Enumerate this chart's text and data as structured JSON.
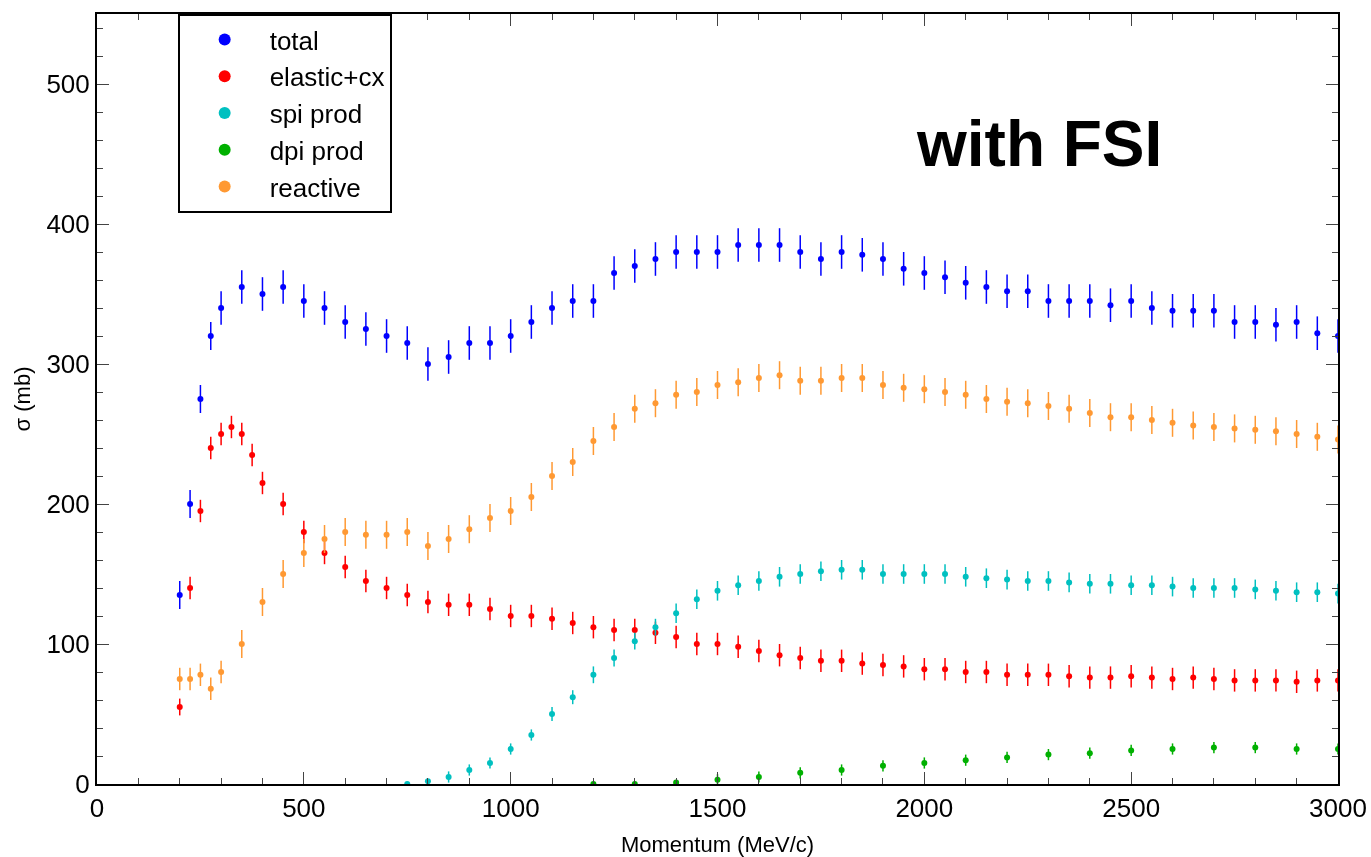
{
  "chart_data": {
    "type": "scatter",
    "xlabel": "Momentum (MeV/c)",
    "ylabel": "σ (mb)",
    "annotations": [
      "with FSI"
    ],
    "xlim": [
      0,
      3000
    ],
    "xticks": [
      0,
      500,
      1000,
      1500,
      2000,
      2500,
      3000
    ],
    "ylim": [
      0,
      550
    ],
    "yticks": [
      0,
      100,
      200,
      300,
      400,
      500
    ],
    "grid": false,
    "legend": "top left",
    "marker": "circle",
    "series": [
      {
        "name": "total",
        "color": "#0000ff",
        "x": [
          200,
          225,
          250,
          275,
          300,
          350,
          400,
          450,
          500,
          550,
          600,
          650,
          700,
          750,
          800,
          850,
          900,
          950,
          1000,
          1050,
          1100,
          1150,
          1200,
          1250,
          1300,
          1350,
          1400,
          1450,
          1500,
          1550,
          1600,
          1650,
          1700,
          1750,
          1800,
          1850,
          1900,
          1950,
          2000,
          2050,
          2100,
          2150,
          2200,
          2250,
          2300,
          2350,
          2400,
          2450,
          2500,
          2550,
          2600,
          2650,
          2700,
          2750,
          2800,
          2850,
          2900,
          2950,
          3000
        ],
        "values": [
          135,
          200,
          275,
          320,
          340,
          355,
          350,
          355,
          345,
          340,
          330,
          325,
          320,
          315,
          300,
          305,
          315,
          315,
          320,
          330,
          340,
          345,
          345,
          365,
          370,
          375,
          380,
          380,
          380,
          385,
          385,
          385,
          380,
          375,
          380,
          378,
          375,
          368,
          365,
          362,
          358,
          355,
          352,
          352,
          345,
          345,
          345,
          342,
          345,
          340,
          338,
          338,
          338,
          330,
          330,
          328,
          330,
          322,
          320
        ],
        "errors": [
          10,
          10,
          10,
          10,
          12,
          12,
          12,
          12,
          12,
          12,
          12,
          12,
          12,
          12,
          12,
          12,
          12,
          12,
          12,
          12,
          12,
          12,
          12,
          12,
          12,
          12,
          12,
          12,
          12,
          12,
          12,
          12,
          12,
          12,
          12,
          12,
          12,
          12,
          12,
          12,
          12,
          12,
          12,
          12,
          12,
          12,
          12,
          12,
          12,
          12,
          12,
          12,
          12,
          12,
          12,
          12,
          12,
          12,
          12
        ]
      },
      {
        "name": "elastic+cx",
        "color": "#ff0000",
        "x": [
          200,
          225,
          250,
          275,
          300,
          325,
          350,
          375,
          400,
          450,
          500,
          550,
          600,
          650,
          700,
          750,
          800,
          850,
          900,
          950,
          1000,
          1050,
          1100,
          1150,
          1200,
          1250,
          1300,
          1350,
          1400,
          1450,
          1500,
          1550,
          1600,
          1650,
          1700,
          1750,
          1800,
          1850,
          1900,
          1950,
          2000,
          2050,
          2100,
          2150,
          2200,
          2250,
          2300,
          2350,
          2400,
          2450,
          2500,
          2550,
          2600,
          2650,
          2700,
          2750,
          2800,
          2850,
          2900,
          2950,
          3000
        ],
        "values": [
          55,
          140,
          195,
          240,
          250,
          255,
          250,
          235,
          215,
          200,
          180,
          165,
          155,
          145,
          140,
          135,
          130,
          128,
          128,
          125,
          120,
          120,
          118,
          115,
          112,
          110,
          110,
          108,
          105,
          100,
          100,
          98,
          95,
          92,
          90,
          88,
          88,
          86,
          85,
          84,
          82,
          82,
          80,
          80,
          78,
          78,
          78,
          77,
          76,
          76,
          77,
          76,
          75,
          76,
          75,
          74,
          74,
          74,
          73,
          74,
          74
        ],
        "errors": [
          6,
          8,
          8,
          8,
          8,
          8,
          8,
          8,
          8,
          8,
          8,
          8,
          8,
          8,
          8,
          8,
          8,
          8,
          8,
          8,
          8,
          8,
          8,
          8,
          8,
          8,
          8,
          8,
          8,
          8,
          8,
          8,
          8,
          8,
          8,
          8,
          8,
          8,
          8,
          8,
          8,
          8,
          8,
          8,
          8,
          8,
          8,
          8,
          8,
          8,
          8,
          8,
          8,
          8,
          8,
          8,
          8,
          8,
          8,
          8,
          8
        ]
      },
      {
        "name": "spi prod",
        "color": "#00c0c0",
        "x": [
          750,
          800,
          850,
          900,
          950,
          1000,
          1050,
          1100,
          1150,
          1200,
          1250,
          1300,
          1350,
          1400,
          1450,
          1500,
          1550,
          1600,
          1650,
          1700,
          1750,
          1800,
          1850,
          1900,
          1950,
          2000,
          2050,
          2100,
          2150,
          2200,
          2250,
          2300,
          2350,
          2400,
          2450,
          2500,
          2550,
          2600,
          2650,
          2700,
          2750,
          2800,
          2850,
          2900,
          2950,
          3000
        ],
        "values": [
          0,
          2,
          5,
          10,
          15,
          25,
          35,
          50,
          62,
          78,
          90,
          102,
          112,
          122,
          132,
          138,
          142,
          145,
          148,
          150,
          152,
          153,
          153,
          150,
          150,
          150,
          150,
          148,
          147,
          146,
          145,
          145,
          144,
          143,
          143,
          142,
          142,
          141,
          140,
          140,
          140,
          139,
          138,
          137,
          137,
          136
        ],
        "errors": [
          null,
          null,
          4,
          4,
          4,
          4,
          4,
          5,
          5,
          6,
          6,
          6,
          6,
          7,
          7,
          7,
          7,
          7,
          7,
          7,
          7,
          7,
          7,
          7,
          7,
          7,
          7,
          7,
          7,
          7,
          7,
          7,
          7,
          7,
          7,
          7,
          7,
          7,
          7,
          7,
          7,
          7,
          7,
          7,
          7,
          7
        ]
      },
      {
        "name": "dpi prod",
        "color": "#00b000",
        "x": [
          1200,
          1300,
          1400,
          1500,
          1600,
          1700,
          1800,
          1900,
          2000,
          2100,
          2200,
          2300,
          2400,
          2500,
          2600,
          2700,
          2800,
          2900,
          3000
        ],
        "values": [
          0,
          0,
          1,
          3,
          5,
          8,
          10,
          13,
          15,
          17,
          19,
          21,
          22,
          24,
          25,
          26,
          26,
          25,
          25
        ],
        "errors": [
          null,
          null,
          null,
          4,
          4,
          4,
          4,
          4,
          4,
          4,
          4,
          4,
          4,
          4,
          4,
          4,
          4,
          4,
          4
        ]
      },
      {
        "name": "reactive",
        "color": "#ff9933",
        "x": [
          200,
          225,
          250,
          275,
          300,
          350,
          400,
          450,
          500,
          550,
          600,
          650,
          700,
          750,
          800,
          850,
          900,
          950,
          1000,
          1050,
          1100,
          1150,
          1200,
          1250,
          1300,
          1350,
          1400,
          1450,
          1500,
          1550,
          1600,
          1650,
          1700,
          1750,
          1800,
          1850,
          1900,
          1950,
          2000,
          2050,
          2100,
          2150,
          2200,
          2250,
          2300,
          2350,
          2400,
          2450,
          2500,
          2550,
          2600,
          2650,
          2700,
          2750,
          2800,
          2850,
          2900,
          2950,
          3000
        ],
        "values": [
          75,
          75,
          78,
          68,
          80,
          100,
          130,
          150,
          165,
          175,
          180,
          178,
          178,
          180,
          170,
          175,
          182,
          190,
          195,
          205,
          220,
          230,
          245,
          255,
          268,
          272,
          278,
          280,
          285,
          287,
          290,
          292,
          288,
          288,
          290,
          290,
          285,
          283,
          282,
          280,
          278,
          275,
          273,
          272,
          270,
          268,
          265,
          262,
          262,
          260,
          258,
          256,
          255,
          254,
          253,
          252,
          250,
          248,
          246
        ],
        "errors": [
          8,
          8,
          8,
          8,
          8,
          10,
          10,
          10,
          10,
          10,
          10,
          10,
          10,
          10,
          10,
          10,
          10,
          10,
          10,
          10,
          10,
          10,
          10,
          10,
          10,
          10,
          10,
          10,
          10,
          10,
          10,
          10,
          10,
          10,
          10,
          10,
          10,
          10,
          10,
          10,
          10,
          10,
          10,
          10,
          10,
          10,
          10,
          10,
          10,
          10,
          10,
          10,
          10,
          10,
          10,
          10,
          10,
          10,
          10
        ]
      }
    ]
  }
}
